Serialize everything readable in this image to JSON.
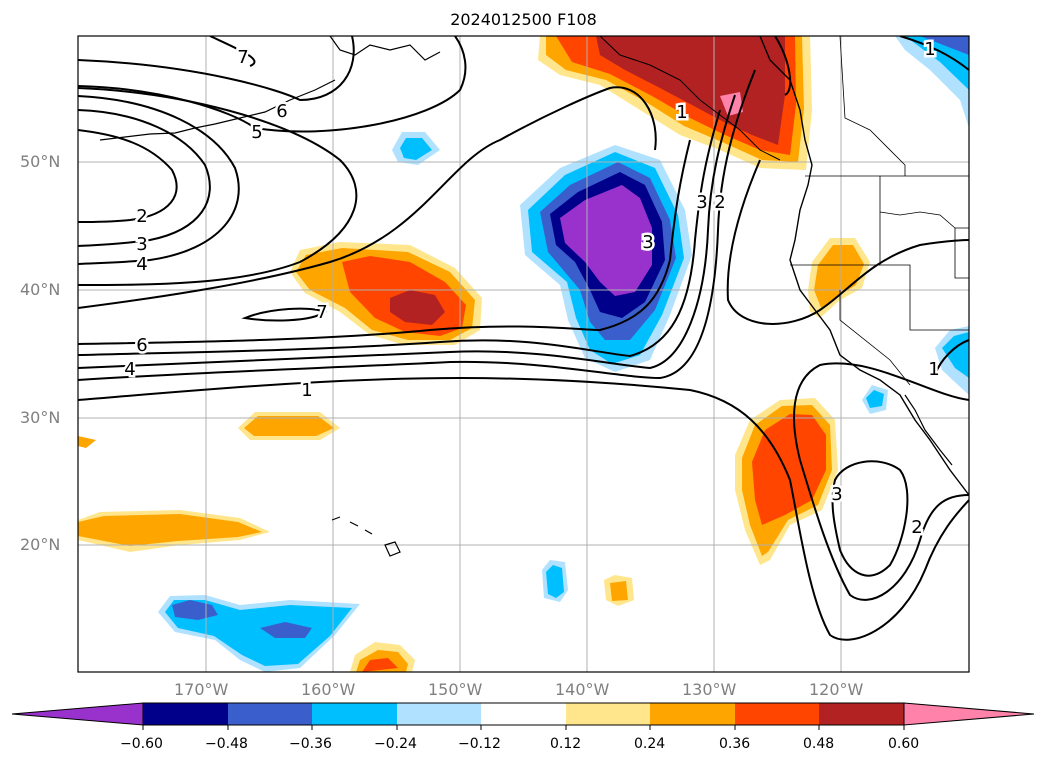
{
  "title": "2024012500 F108",
  "lat_labels": [
    "50°N",
    "40°N",
    "30°N",
    "20°N"
  ],
  "lon_labels": [
    "170°W",
    "160°W",
    "150°W",
    "140°W",
    "130°W",
    "120°W"
  ],
  "contour_labels": [
    "7",
    "6",
    "5",
    "2",
    "3",
    "4",
    "7",
    "6",
    "4",
    "1",
    "3",
    "2",
    "1",
    "3",
    "2",
    "1",
    "1",
    "3"
  ],
  "colorbar": {
    "ticks": [
      "−0.60",
      "−0.48",
      "−0.36",
      "−0.24",
      "−0.12",
      "0.12",
      "0.24",
      "0.36",
      "0.48",
      "0.60"
    ],
    "colors": [
      "#9932cc",
      "#00008b",
      "#3a5fcd",
      "#00bfff",
      "#b0e2ff",
      "#ffffff",
      "#ffe68c",
      "#ffa500",
      "#ff4500",
      "#b22222",
      "#ff82ab"
    ]
  },
  "colors": {
    "purple": "#9932cc",
    "navy": "#00008b",
    "blue": "#3a5fcd",
    "cyan": "#00bfff",
    "lightcyan": "#b0e2ff",
    "yellow": "#ffe68c",
    "orange": "#ffa500",
    "redorange": "#ff4500",
    "firebrick": "#b22222",
    "pink": "#ff82ab"
  }
}
